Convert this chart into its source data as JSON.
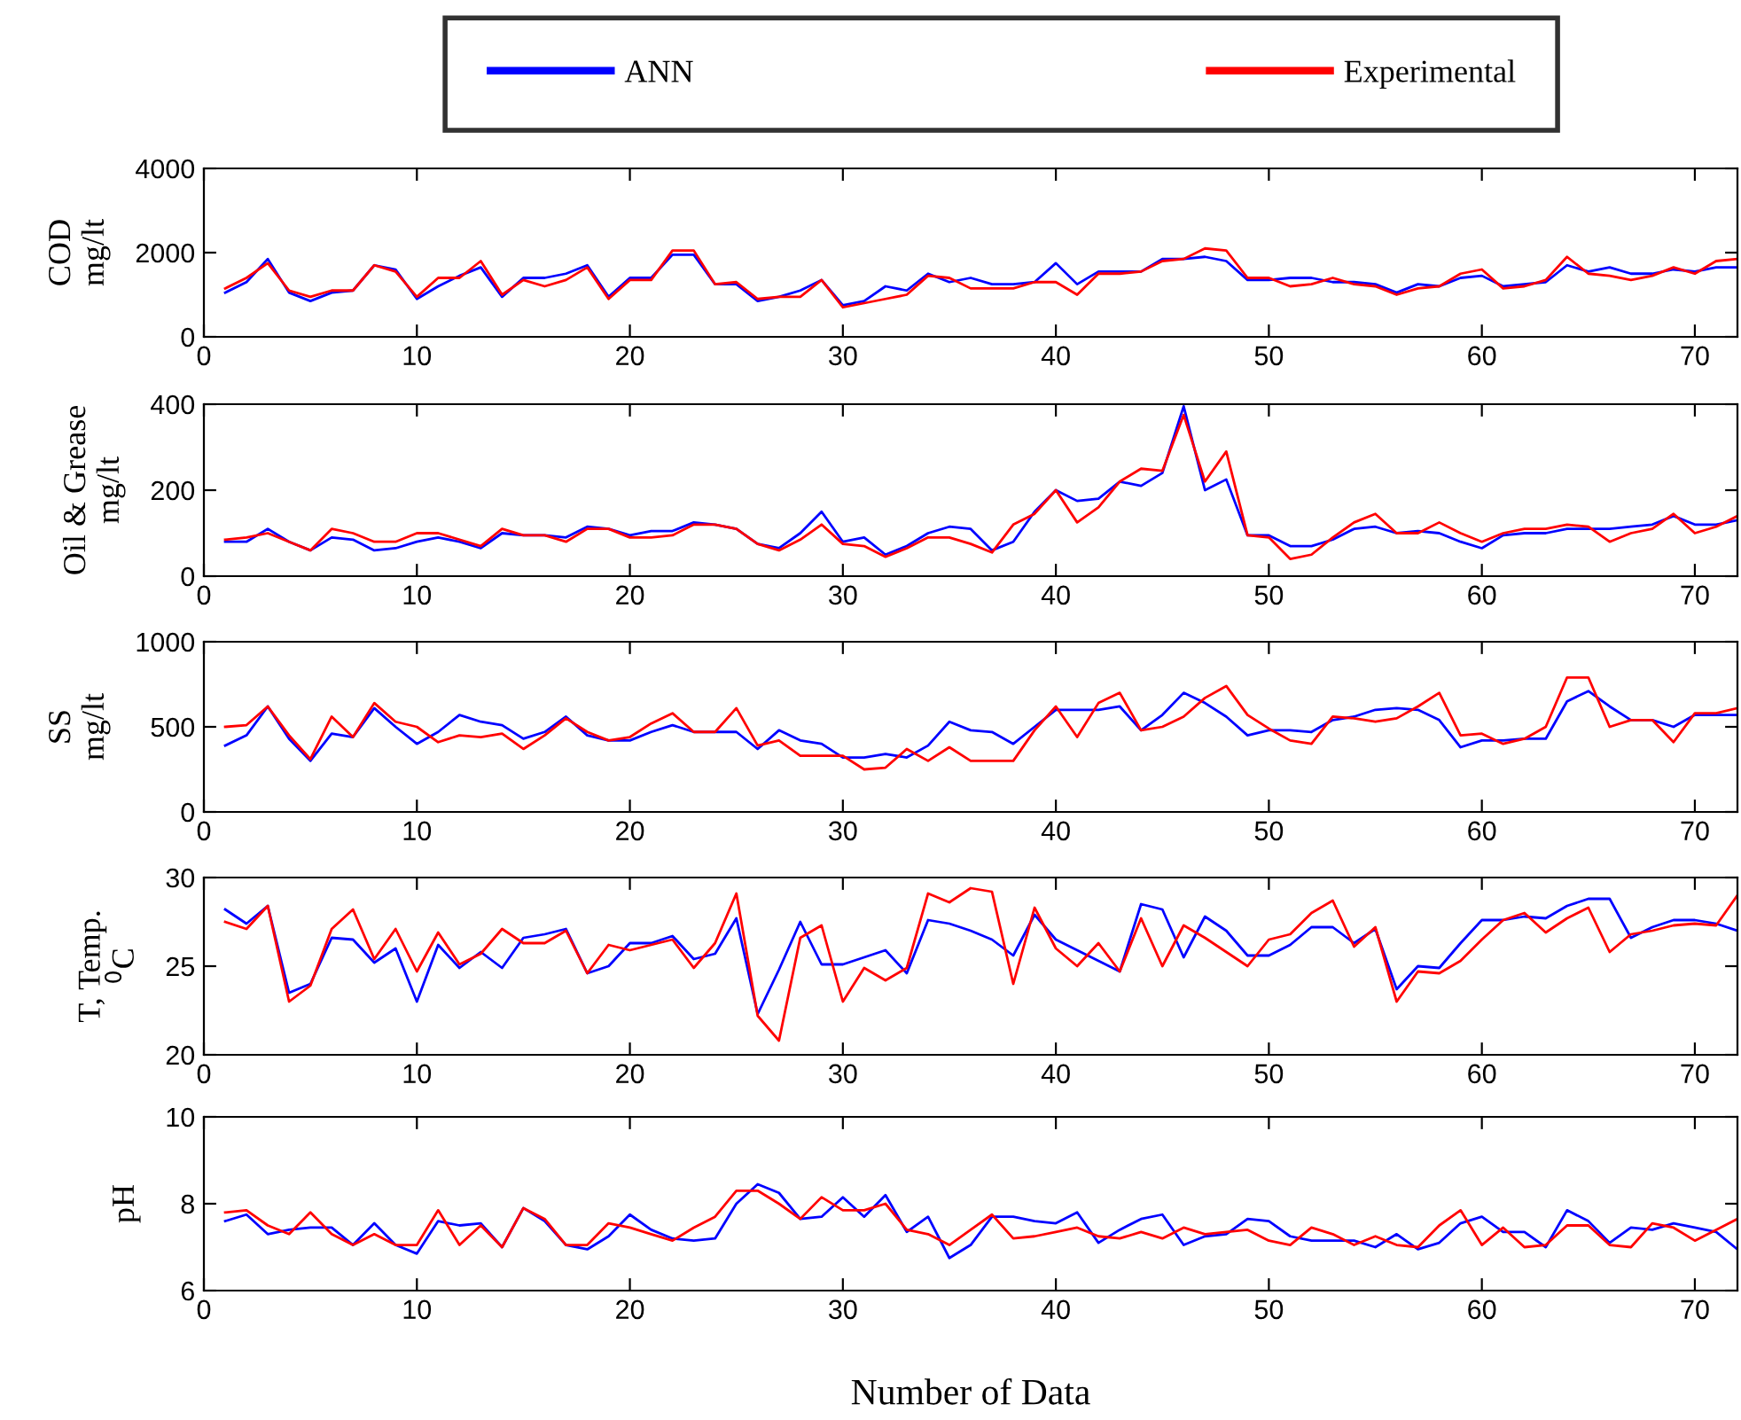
{
  "chart_data": [
    {
      "type": "line",
      "ylabel": "COD\nmg/lt",
      "legend": "top",
      "xlim": [
        0,
        72
      ],
      "ylim": [
        0,
        4000
      ],
      "xticks": [
        0,
        10,
        20,
        30,
        40,
        50,
        60,
        70
      ],
      "yticks": [
        0,
        2000,
        4000
      ],
      "grid": false,
      "x": [
        1,
        2,
        3,
        4,
        5,
        6,
        7,
        8,
        9,
        10,
        11,
        12,
        13,
        14,
        15,
        16,
        17,
        18,
        19,
        20,
        21,
        22,
        23,
        24,
        25,
        26,
        27,
        28,
        29,
        30,
        31,
        32,
        33,
        34,
        35,
        36,
        37,
        38,
        39,
        40,
        41,
        42,
        43,
        44,
        45,
        46,
        47,
        48,
        49,
        50,
        51,
        52,
        53,
        54,
        55,
        56,
        57,
        58,
        59,
        60,
        61,
        62,
        63,
        64,
        65,
        66,
        67,
        68,
        69,
        70,
        71,
        72
      ],
      "series": [
        {
          "name": "ANN",
          "color": "#0000ff",
          "values": [
            1050,
            1300,
            1850,
            1050,
            850,
            1050,
            1100,
            1700,
            1600,
            900,
            1200,
            1450,
            1650,
            950,
            1400,
            1400,
            1500,
            1700,
            950,
            1400,
            1400,
            1950,
            1950,
            1250,
            1250,
            850,
            950,
            1100,
            1350,
            750,
            850,
            1200,
            1100,
            1500,
            1300,
            1400,
            1250,
            1250,
            1300,
            1750,
            1250,
            1550,
            1550,
            1550,
            1850,
            1850,
            1900,
            1800,
            1350,
            1350,
            1400,
            1400,
            1300,
            1300,
            1250,
            1050,
            1250,
            1200,
            1400,
            1450,
            1200,
            1250,
            1300,
            1700,
            1550,
            1650,
            1500,
            1500,
            1600,
            1550,
            1650,
            1650
          ]
        },
        {
          "name": "Experimental",
          "color": "#ff0000",
          "values": [
            1150,
            1400,
            1750,
            1100,
            950,
            1100,
            1100,
            1700,
            1550,
            950,
            1400,
            1400,
            1800,
            1000,
            1350,
            1200,
            1350,
            1650,
            900,
            1350,
            1350,
            2050,
            2050,
            1250,
            1300,
            900,
            950,
            950,
            1350,
            700,
            800,
            900,
            1000,
            1450,
            1400,
            1150,
            1150,
            1150,
            1300,
            1300,
            1000,
            1500,
            1500,
            1550,
            1800,
            1850,
            2100,
            2050,
            1400,
            1400,
            1200,
            1250,
            1400,
            1250,
            1200,
            1000,
            1150,
            1200,
            1500,
            1600,
            1150,
            1200,
            1350,
            1900,
            1500,
            1450,
            1350,
            1450,
            1650,
            1500,
            1800,
            1850
          ]
        }
      ]
    },
    {
      "type": "line",
      "ylabel": "Oil & Grease\nmg/lt",
      "xlim": [
        0,
        72
      ],
      "ylim": [
        0,
        400
      ],
      "xticks": [
        0,
        10,
        20,
        30,
        40,
        50,
        60,
        70
      ],
      "yticks": [
        0,
        200,
        400
      ],
      "grid": false,
      "x": [
        1,
        2,
        3,
        4,
        5,
        6,
        7,
        8,
        9,
        10,
        11,
        12,
        13,
        14,
        15,
        16,
        17,
        18,
        19,
        20,
        21,
        22,
        23,
        24,
        25,
        26,
        27,
        28,
        29,
        30,
        31,
        32,
        33,
        34,
        35,
        36,
        37,
        38,
        39,
        40,
        41,
        42,
        43,
        44,
        45,
        46,
        47,
        48,
        49,
        50,
        51,
        52,
        53,
        54,
        55,
        56,
        57,
        58,
        59,
        60,
        61,
        62,
        63,
        64,
        65,
        66,
        67,
        68,
        69,
        70,
        71,
        72
      ],
      "series": [
        {
          "color": "#0000ff",
          "values": [
            80,
            80,
            110,
            80,
            60,
            90,
            85,
            60,
            65,
            80,
            90,
            80,
            65,
            100,
            95,
            95,
            90,
            115,
            110,
            95,
            105,
            105,
            125,
            120,
            110,
            75,
            65,
            100,
            150,
            80,
            90,
            50,
            70,
            100,
            115,
            110,
            60,
            80,
            150,
            200,
            175,
            180,
            220,
            210,
            240,
            395,
            200,
            225,
            95,
            95,
            70,
            70,
            85,
            110,
            115,
            100,
            105,
            100,
            80,
            65,
            95,
            100,
            100,
            110,
            110,
            110,
            115,
            120,
            140,
            120,
            120,
            130
          ]
        },
        {
          "color": "#ff0000",
          "values": [
            85,
            90,
            100,
            80,
            60,
            110,
            100,
            80,
            80,
            100,
            100,
            85,
            70,
            110,
            95,
            95,
            80,
            110,
            110,
            90,
            90,
            95,
            120,
            120,
            110,
            75,
            60,
            85,
            120,
            75,
            70,
            45,
            65,
            90,
            90,
            75,
            55,
            120,
            145,
            200,
            125,
            160,
            220,
            250,
            245,
            375,
            220,
            290,
            95,
            90,
            40,
            50,
            90,
            125,
            145,
            100,
            100,
            125,
            100,
            80,
            100,
            110,
            110,
            120,
            115,
            80,
            100,
            110,
            145,
            100,
            115,
            140
          ]
        }
      ]
    },
    {
      "type": "line",
      "ylabel": "SS\nmg/lt",
      "xlim": [
        0,
        72
      ],
      "ylim": [
        0,
        1000
      ],
      "xticks": [
        0,
        10,
        20,
        30,
        40,
        50,
        60,
        70
      ],
      "yticks": [
        0,
        500,
        1000
      ],
      "grid": false,
      "x": [
        1,
        2,
        3,
        4,
        5,
        6,
        7,
        8,
        9,
        10,
        11,
        12,
        13,
        14,
        15,
        16,
        17,
        18,
        19,
        20,
        21,
        22,
        23,
        24,
        25,
        26,
        27,
        28,
        29,
        30,
        31,
        32,
        33,
        34,
        35,
        36,
        37,
        38,
        39,
        40,
        41,
        42,
        43,
        44,
        45,
        46,
        47,
        48,
        49,
        50,
        51,
        52,
        53,
        54,
        55,
        56,
        57,
        58,
        59,
        60,
        61,
        62,
        63,
        64,
        65,
        66,
        67,
        68,
        69,
        70,
        71,
        72
      ],
      "series": [
        {
          "color": "#0000ff",
          "values": [
            390,
            450,
            620,
            430,
            300,
            460,
            440,
            610,
            500,
            400,
            470,
            570,
            530,
            510,
            430,
            470,
            560,
            450,
            420,
            420,
            470,
            510,
            470,
            470,
            470,
            370,
            480,
            420,
            400,
            320,
            320,
            340,
            320,
            390,
            530,
            480,
            470,
            400,
            500,
            600,
            600,
            600,
            620,
            480,
            570,
            700,
            640,
            560,
            450,
            480,
            480,
            470,
            540,
            560,
            600,
            610,
            600,
            540,
            380,
            420,
            420,
            430,
            430,
            650,
            710,
            620,
            540,
            540,
            500,
            570,
            570,
            570
          ]
        },
        {
          "color": "#ff0000",
          "values": [
            500,
            510,
            620,
            450,
            310,
            560,
            440,
            640,
            530,
            500,
            410,
            450,
            440,
            460,
            370,
            450,
            550,
            470,
            420,
            440,
            520,
            580,
            470,
            470,
            610,
            390,
            420,
            330,
            330,
            330,
            250,
            260,
            370,
            300,
            380,
            300,
            300,
            300,
            480,
            620,
            440,
            640,
            700,
            480,
            500,
            560,
            670,
            740,
            570,
            490,
            420,
            400,
            560,
            550,
            530,
            550,
            620,
            700,
            450,
            460,
            400,
            430,
            500,
            790,
            790,
            500,
            540,
            540,
            410,
            580,
            580,
            610
          ]
        }
      ]
    },
    {
      "type": "line",
      "ylabel": "T, Temp.\n$^{0}$C",
      "xlim": [
        0,
        72
      ],
      "ylim": [
        20,
        30
      ],
      "xticks": [
        0,
        10,
        20,
        30,
        40,
        50,
        60,
        70
      ],
      "yticks": [
        20,
        25,
        30
      ],
      "grid": false,
      "x": [
        1,
        2,
        3,
        4,
        5,
        6,
        7,
        8,
        9,
        10,
        11,
        12,
        13,
        14,
        15,
        16,
        17,
        18,
        19,
        20,
        21,
        22,
        23,
        24,
        25,
        26,
        27,
        28,
        29,
        30,
        31,
        32,
        33,
        34,
        35,
        36,
        37,
        38,
        39,
        40,
        41,
        42,
        43,
        44,
        45,
        46,
        47,
        48,
        49,
        50,
        51,
        52,
        53,
        54,
        55,
        56,
        57,
        58,
        59,
        60,
        61,
        62,
        63,
        64,
        65,
        66,
        67,
        68,
        69,
        70,
        71,
        72
      ],
      "series": [
        {
          "color": "#0000ff",
          "values": [
            28.2,
            27.4,
            28.4,
            23.5,
            24.0,
            26.6,
            26.5,
            25.2,
            26.0,
            23.0,
            26.2,
            24.9,
            25.8,
            24.9,
            26.6,
            26.8,
            27.1,
            24.6,
            25.0,
            26.3,
            26.3,
            26.7,
            25.4,
            25.7,
            27.7,
            22.3,
            24.8,
            27.5,
            25.1,
            25.1,
            25.5,
            25.9,
            24.6,
            27.6,
            27.4,
            27.0,
            26.5,
            25.6,
            27.9,
            26.5,
            25.9,
            25.3,
            24.7,
            28.5,
            28.2,
            25.5,
            27.8,
            27.0,
            25.6,
            25.6,
            26.2,
            27.2,
            27.2,
            26.3,
            27.1,
            23.7,
            25.0,
            24.9,
            26.3,
            27.6,
            27.6,
            27.8,
            27.7,
            28.4,
            28.8,
            28.8,
            26.6,
            27.2,
            27.6,
            27.6,
            27.4,
            27.0
          ]
        },
        {
          "color": "#ff0000",
          "values": [
            27.5,
            27.1,
            28.4,
            23.0,
            23.9,
            27.1,
            28.2,
            25.4,
            27.1,
            24.7,
            26.9,
            25.1,
            25.7,
            27.1,
            26.3,
            26.3,
            27.0,
            24.6,
            26.2,
            25.9,
            26.2,
            26.5,
            24.9,
            26.3,
            29.1,
            22.2,
            20.8,
            26.6,
            27.3,
            23.0,
            24.9,
            24.2,
            24.9,
            29.1,
            28.6,
            29.4,
            29.2,
            24.0,
            28.3,
            26.0,
            25.0,
            26.3,
            24.7,
            27.7,
            25.0,
            27.3,
            26.6,
            25.8,
            25.0,
            26.5,
            26.8,
            28.0,
            28.7,
            26.1,
            27.2,
            23.0,
            24.7,
            24.6,
            25.3,
            26.5,
            27.6,
            28.0,
            26.9,
            27.7,
            28.3,
            25.8,
            26.8,
            27.0,
            27.3,
            27.4,
            27.3,
            29.0
          ]
        }
      ]
    },
    {
      "type": "line",
      "ylabel": "pH",
      "xlabel": "Number of Data",
      "xlim": [
        0,
        72
      ],
      "ylim": [
        6,
        10
      ],
      "xticks": [
        0,
        10,
        20,
        30,
        40,
        50,
        60,
        70
      ],
      "yticks": [
        6,
        8,
        10
      ],
      "grid": false,
      "x": [
        1,
        2,
        3,
        4,
        5,
        6,
        7,
        8,
        9,
        10,
        11,
        12,
        13,
        14,
        15,
        16,
        17,
        18,
        19,
        20,
        21,
        22,
        23,
        24,
        25,
        26,
        27,
        28,
        29,
        30,
        31,
        32,
        33,
        34,
        35,
        36,
        37,
        38,
        39,
        40,
        41,
        42,
        43,
        44,
        45,
        46,
        47,
        48,
        49,
        50,
        51,
        52,
        53,
        54,
        55,
        56,
        57,
        58,
        59,
        60,
        61,
        62,
        63,
        64,
        65,
        66,
        67,
        68,
        69,
        70,
        71,
        72
      ],
      "series": [
        {
          "color": "#0000ff",
          "values": [
            7.6,
            7.75,
            7.3,
            7.4,
            7.45,
            7.45,
            7.05,
            7.55,
            7.05,
            6.85,
            7.6,
            7.5,
            7.55,
            7.0,
            7.9,
            7.6,
            7.05,
            6.95,
            7.25,
            7.75,
            7.4,
            7.2,
            7.15,
            7.2,
            8.0,
            8.45,
            8.25,
            7.65,
            7.7,
            8.15,
            7.7,
            8.2,
            7.35,
            7.7,
            6.75,
            7.05,
            7.7,
            7.7,
            7.6,
            7.55,
            7.8,
            7.1,
            7.4,
            7.65,
            7.75,
            7.05,
            7.25,
            7.3,
            7.65,
            7.6,
            7.25,
            7.15,
            7.15,
            7.15,
            7.0,
            7.3,
            6.95,
            7.1,
            7.55,
            7.7,
            7.35,
            7.35,
            7.0,
            7.85,
            7.6,
            7.1,
            7.45,
            7.4,
            7.55,
            7.45,
            7.35,
            6.95
          ]
        },
        {
          "color": "#ff0000",
          "values": [
            7.8,
            7.85,
            7.5,
            7.3,
            7.8,
            7.3,
            7.05,
            7.3,
            7.05,
            7.05,
            7.85,
            7.05,
            7.5,
            7.0,
            7.9,
            7.65,
            7.05,
            7.05,
            7.55,
            7.45,
            7.3,
            7.15,
            7.45,
            7.7,
            8.3,
            8.3,
            8.0,
            7.65,
            8.15,
            7.85,
            7.85,
            8.0,
            7.4,
            7.3,
            7.05,
            7.4,
            7.75,
            7.2,
            7.25,
            7.35,
            7.45,
            7.25,
            7.2,
            7.35,
            7.2,
            7.45,
            7.3,
            7.35,
            7.4,
            7.15,
            7.05,
            7.45,
            7.3,
            7.05,
            7.25,
            7.05,
            7.0,
            7.5,
            7.85,
            7.05,
            7.45,
            7.0,
            7.05,
            7.5,
            7.5,
            7.05,
            7.0,
            7.55,
            7.45,
            7.15,
            7.4,
            7.65
          ]
        }
      ]
    }
  ]
}
